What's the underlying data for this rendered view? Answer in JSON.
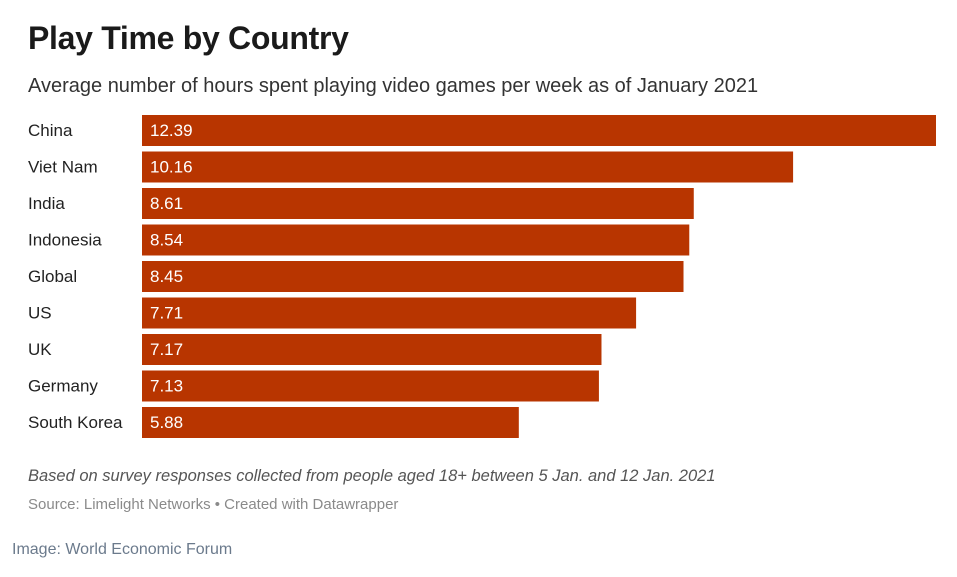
{
  "chart_data": {
    "type": "bar",
    "orientation": "horizontal",
    "title": "Play Time by Country",
    "subtitle": "Average number of hours spent playing video games per week as of January 2021",
    "categories": [
      "China",
      "Viet Nam",
      "India",
      "Indonesia",
      "Global",
      "US",
      "UK",
      "Germany",
      "South Korea"
    ],
    "values": [
      12.39,
      10.16,
      8.61,
      8.54,
      8.45,
      7.71,
      7.17,
      7.13,
      5.88
    ],
    "value_labels": [
      "12.39",
      "10.16",
      "8.61",
      "8.54",
      "8.45",
      "7.71",
      "7.17",
      "7.13",
      "5.88"
    ],
    "xlabel": "",
    "ylabel": "",
    "xlim": [
      0,
      12.39
    ],
    "grid": false,
    "legend": "none",
    "bar_color": "#b83500",
    "notes": "Based on survey responses collected from people aged 18+ between 5 Jan. and 12 Jan. 2021",
    "source": "Source: Limelight Networks • Created with Datawrapper"
  },
  "credit": "Image: World Economic Forum"
}
